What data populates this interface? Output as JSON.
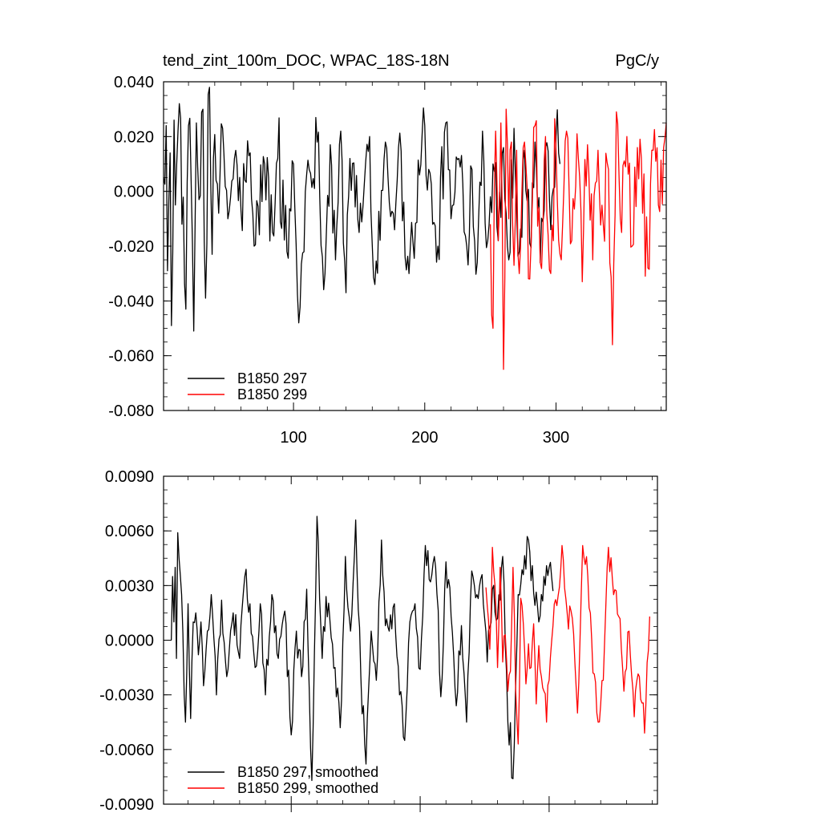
{
  "chart_data": [
    {
      "type": "line",
      "title": "tend_zint_100m_DOC, WPAC_18S-18N",
      "units": "PgC/y",
      "xlim": [
        1,
        384
      ],
      "ylim": [
        -0.08,
        0.04
      ],
      "x_ticks": [
        100,
        200,
        300
      ],
      "x_tick_labels": [
        "100",
        "200",
        "300"
      ],
      "y_ticks": [
        -0.08,
        -0.06,
        -0.04,
        -0.02,
        0.0,
        0.02,
        0.04
      ],
      "y_tick_labels": [
        "-0.080",
        "-0.060",
        "-0.040",
        "-0.020",
        "0.000",
        "0.020",
        "0.040"
      ],
      "legend_position": "bottom-left",
      "series": [
        {
          "name": "B1850 297",
          "color": "#000000",
          "x_start": 1,
          "x_end": 303,
          "anchors_x": [
            1,
            3,
            4,
            6,
            7,
            9,
            10,
            12,
            13,
            15,
            18,
            20,
            22,
            24,
            26,
            28,
            31,
            33,
            36,
            38,
            39,
            41,
            43,
            46,
            50,
            55,
            60,
            66,
            70,
            78,
            84,
            88,
            95,
            100,
            104,
            110,
            118,
            124,
            128,
            132,
            136,
            140,
            143,
            150,
            158,
            162,
            170,
            176,
            180,
            188,
            196,
            200,
            206,
            210,
            216,
            220,
            226,
            232,
            236,
            240,
            244,
            248,
            252,
            256,
            260,
            264,
            268,
            272,
            276,
            280,
            284,
            288,
            292,
            296,
            300,
            303
          ],
          "anchors_y": [
            0.005,
            0.024,
            -0.029,
            0.014,
            -0.049,
            0.026,
            -0.005,
            0.022,
            0.032,
            -0.012,
            -0.043,
            0.024,
            0.004,
            -0.051,
            0.025,
            -0.003,
            0.03,
            -0.039,
            0.038,
            -0.023,
            0.012,
            0.004,
            -0.008,
            0.023,
            -0.01,
            0.012,
            -0.007,
            0.013,
            -0.02,
            0.01,
            -0.015,
            0.012,
            -0.022,
            0.01,
            -0.048,
            0.006,
            0.018,
            -0.03,
            0.017,
            -0.025,
            0.022,
            -0.037,
            0.012,
            -0.015,
            0.02,
            -0.034,
            0.018,
            -0.008,
            0.016,
            -0.03,
            0.006,
            0.024,
            -0.012,
            -0.02,
            0.025,
            -0.01,
            0.012,
            -0.02,
            0.008,
            -0.026,
            0.022,
            -0.018,
            0.01,
            -0.018,
            0.016,
            -0.025,
            0.023,
            -0.022,
            0.015,
            -0.019,
            0.018,
            -0.026,
            0.016,
            -0.014,
            0.02,
            0.01
          ]
        },
        {
          "name": "B1850 299",
          "color": "#ff0000",
          "x_start": 250,
          "x_end": 384,
          "anchors_x": [
            250,
            252,
            254,
            256,
            258,
            260,
            262,
            264,
            266,
            268,
            270,
            272,
            276,
            280,
            284,
            288,
            292,
            296,
            300,
            304,
            308,
            312,
            316,
            320,
            324,
            328,
            332,
            336,
            340,
            343,
            346,
            350,
            354,
            358,
            362,
            366,
            370,
            374,
            378,
            382,
            384
          ],
          "anchors_y": [
            -0.012,
            -0.05,
            0.022,
            -0.018,
            0.025,
            -0.065,
            0.03,
            -0.01,
            0.018,
            -0.027,
            0.015,
            -0.03,
            0.018,
            -0.032,
            0.024,
            -0.026,
            0.02,
            -0.03,
            0.015,
            -0.025,
            0.022,
            -0.018,
            0.021,
            -0.033,
            0.017,
            -0.025,
            0.015,
            -0.012,
            0.008,
            -0.056,
            0.029,
            -0.015,
            0.02,
            -0.02,
            0.016,
            -0.008,
            -0.028,
            0.015,
            -0.005,
            0.016,
            0.025
          ]
        }
      ],
      "legend": [
        "B1850 297",
        "B1850 299"
      ]
    },
    {
      "type": "line",
      "title": "",
      "xlim": [
        1,
        384
      ],
      "ylim": [
        -0.009,
        0.009
      ],
      "y_ticks": [
        -0.009,
        -0.006,
        -0.003,
        0.0,
        0.003,
        0.006,
        0.009
      ],
      "y_tick_labels": [
        "-0.0090",
        "-0.0060",
        "-0.0030",
        "0.0000",
        "0.0030",
        "0.0060",
        "0.0090"
      ],
      "legend_position": "bottom-left",
      "series": [
        {
          "name": "B1850 297, smoothed",
          "color": "#000000",
          "x_start": 7,
          "x_end": 303,
          "anchors_x": [
            7,
            8,
            9,
            10,
            11,
            12,
            13,
            15,
            17,
            18,
            20,
            22,
            24,
            26,
            28,
            30,
            32,
            35,
            38,
            42,
            46,
            50,
            55,
            60,
            64,
            68,
            72,
            76,
            80,
            85,
            90,
            95,
            100,
            104,
            108,
            112,
            116,
            120,
            124,
            127,
            130,
            134,
            138,
            142,
            146,
            150,
            154,
            158,
            162,
            166,
            170,
            173,
            176,
            180,
            184,
            188,
            192,
            196,
            200,
            204,
            208,
            212,
            216,
            220,
            224,
            228,
            232,
            236,
            240,
            244,
            248,
            252,
            256,
            260,
            264,
            268,
            272,
            276,
            280,
            284,
            288,
            292,
            296,
            300,
            303
          ],
          "anchors_y": [
            0.0,
            0.0035,
            0.001,
            0.004,
            -0.001,
            0.0059,
            0.0045,
            0.0025,
            -0.003,
            -0.0045,
            0.002,
            -0.0043,
            0.001,
            0.0015,
            -0.0008,
            0.001,
            -0.0025,
            0.0005,
            0.0025,
            -0.003,
            0.0022,
            -0.002,
            0.0015,
            -0.001,
            0.0035,
            0.002,
            -0.0015,
            0.002,
            -0.003,
            0.0025,
            -0.001,
            0.0016,
            -0.0052,
            0.0005,
            -0.002,
            0.0028,
            -0.0077,
            0.0068,
            -0.001,
            0.0024,
            0.0011,
            -0.0015,
            -0.0048,
            0.0046,
            0.0005,
            0.0066,
            -0.002,
            -0.0068,
            0.0005,
            -0.0022,
            0.0055,
            0.0008,
            0.0005,
            0.002,
            -0.003,
            -0.0055,
            0.001,
            0.002,
            -0.0016,
            0.0052,
            0.0032,
            0.004,
            -0.0031,
            0.0043,
            0.0013,
            -0.0036,
            0.0008,
            -0.0045,
            0.0038,
            0.0025,
            0.0036,
            -0.0012,
            0.0028,
            0.0012,
            0.0046,
            -0.0045,
            -0.0076,
            0.0025,
            0.0036,
            0.0055,
            0.0026,
            0.001,
            0.0035,
            0.004,
            0.0027
          ]
        },
        {
          "name": "B1850 299, smoothed",
          "color": "#ff0000",
          "x_start": 251,
          "x_end": 378,
          "anchors_x": [
            251,
            254,
            256,
            258,
            260,
            262,
            264,
            266,
            268,
            270,
            272,
            274,
            276,
            278,
            280,
            282,
            284,
            286,
            288,
            290,
            292,
            294,
            296,
            298,
            300,
            303,
            306,
            310,
            314,
            318,
            322,
            326,
            330,
            334,
            338,
            342,
            346,
            350,
            354,
            358,
            362,
            366,
            370,
            374,
            378
          ],
          "anchors_y": [
            0.0029,
            -0.0005,
            0.0051,
            0.003,
            -0.0015,
            0.004,
            -0.0012,
            0.0003,
            -0.0028,
            -0.0017,
            0.004,
            -0.0026,
            -0.0057,
            0.0023,
            0.0009,
            -0.0024,
            -0.0002,
            -0.0015,
            0.0009,
            -0.0035,
            -0.0003,
            -0.002,
            -0.0028,
            -0.0045,
            -0.0022,
            0.0008,
            0.0019,
            0.0052,
            0.0015,
            0.0012,
            -0.004,
            0.0052,
            0.0035,
            -0.0018,
            -0.0045,
            -0.0022,
            0.0051,
            0.0025,
            0.0013,
            -0.0028,
            0.0005,
            -0.0042,
            -0.002,
            -0.0051,
            0.0013
          ]
        }
      ],
      "legend": [
        "B1850 297, smoothed",
        "B1850 299, smoothed"
      ]
    }
  ]
}
